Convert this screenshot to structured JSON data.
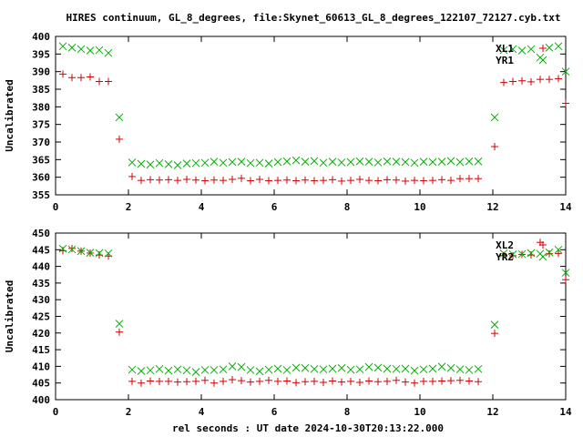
{
  "title": "HIRES continuum, GL_8_degrees, file:Skynet_60613_GL_8_degrees_122107_72127.cyb.txt",
  "xlabel": "rel seconds : UT date 2024-10-30T20:13:22.000",
  "colors": {
    "red": "#d40000",
    "green": "#00b000",
    "axis": "#000000"
  },
  "chart_data": [
    {
      "type": "scatter",
      "ylabel": "Uncalibrated",
      "xlim": [
        0,
        14
      ],
      "ylim": [
        355,
        400
      ],
      "xticks": [
        0,
        2,
        4,
        6,
        8,
        10,
        12,
        14
      ],
      "yticks": [
        355,
        360,
        365,
        370,
        375,
        380,
        385,
        390,
        395,
        400
      ],
      "legend_position": "top-right",
      "series": [
        {
          "name": "XL1",
          "marker": "plus",
          "color": "#d40000",
          "x": [
            0.2,
            0.45,
            0.7,
            0.95,
            1.2,
            1.45,
            1.75,
            2.1,
            2.35,
            2.6,
            2.85,
            3.1,
            3.35,
            3.6,
            3.85,
            4.1,
            4.35,
            4.6,
            4.85,
            5.1,
            5.35,
            5.6,
            5.85,
            6.1,
            6.35,
            6.6,
            6.85,
            7.1,
            7.35,
            7.6,
            7.85,
            8.1,
            8.35,
            8.6,
            8.85,
            9.1,
            9.35,
            9.6,
            9.85,
            10.1,
            10.35,
            10.6,
            10.85,
            11.1,
            11.35,
            11.6,
            12.05,
            12.3,
            12.55,
            12.8,
            13.05,
            13.3,
            13.55,
            13.8,
            14.0
          ],
          "y": [
            389.3,
            388.3,
            388.3,
            388.5,
            387.2,
            387.2,
            370.8,
            360.2,
            359.1,
            359.3,
            359.2,
            359.3,
            359.1,
            359.4,
            359.2,
            359.0,
            359.2,
            359.1,
            359.4,
            359.7,
            359.0,
            359.4,
            359.0,
            359.1,
            359.2,
            359.0,
            359.2,
            359.0,
            359.1,
            359.3,
            358.9,
            359.1,
            359.4,
            359.1,
            359.0,
            359.3,
            359.2,
            358.9,
            359.1,
            359.0,
            359.1,
            359.3,
            359.1,
            359.6,
            359.6,
            359.6,
            368.7,
            386.9,
            387.2,
            387.4,
            387.1,
            387.8,
            387.8,
            388.0,
            381.0
          ]
        },
        {
          "name": "YR1",
          "marker": "cross",
          "color": "#00b000",
          "x": [
            0.2,
            0.45,
            0.7,
            0.95,
            1.2,
            1.45,
            1.75,
            2.1,
            2.35,
            2.6,
            2.85,
            3.1,
            3.35,
            3.6,
            3.85,
            4.1,
            4.35,
            4.6,
            4.85,
            5.1,
            5.35,
            5.6,
            5.85,
            6.1,
            6.35,
            6.6,
            6.85,
            7.1,
            7.35,
            7.6,
            7.85,
            8.1,
            8.35,
            8.6,
            8.85,
            9.1,
            9.35,
            9.6,
            9.85,
            10.1,
            10.35,
            10.6,
            10.85,
            11.1,
            11.35,
            11.6,
            12.05,
            12.3,
            12.55,
            12.8,
            13.05,
            13.3,
            13.55,
            13.8,
            14.0
          ],
          "y": [
            397.2,
            396.8,
            396.4,
            396.0,
            396.1,
            395.3,
            377.0,
            364.2,
            363.8,
            363.6,
            364.0,
            363.7,
            363.4,
            363.9,
            364.0,
            364.1,
            364.4,
            364.1,
            364.3,
            364.4,
            364.0,
            364.1,
            363.9,
            364.3,
            364.5,
            364.8,
            364.4,
            364.6,
            364.1,
            364.4,
            364.2,
            364.3,
            364.5,
            364.4,
            364.2,
            364.5,
            364.4,
            364.3,
            364.1,
            364.4,
            364.3,
            364.4,
            364.6,
            364.3,
            364.5,
            364.5,
            377.0,
            396.1,
            396.4,
            396.0,
            396.4,
            394.0,
            396.8,
            397.2,
            390.0
          ]
        }
      ]
    },
    {
      "type": "scatter",
      "ylabel": "Uncalibrated",
      "xlim": [
        0,
        14
      ],
      "ylim": [
        400,
        450
      ],
      "xticks": [
        0,
        2,
        4,
        6,
        8,
        10,
        12,
        14
      ],
      "yticks": [
        400,
        405,
        410,
        415,
        420,
        425,
        430,
        435,
        440,
        445,
        450
      ],
      "legend_position": "top-right",
      "series": [
        {
          "name": "XL2",
          "marker": "plus",
          "color": "#d40000",
          "x": [
            0.2,
            0.45,
            0.7,
            0.95,
            1.2,
            1.45,
            1.75,
            2.1,
            2.35,
            2.6,
            2.85,
            3.1,
            3.35,
            3.6,
            3.85,
            4.1,
            4.35,
            4.6,
            4.85,
            5.1,
            5.35,
            5.6,
            5.85,
            6.1,
            6.35,
            6.6,
            6.85,
            7.1,
            7.35,
            7.6,
            7.85,
            8.1,
            8.35,
            8.6,
            8.85,
            9.1,
            9.35,
            9.6,
            9.85,
            10.1,
            10.35,
            10.6,
            10.85,
            11.1,
            11.35,
            11.6,
            12.05,
            12.3,
            12.55,
            12.8,
            13.05,
            13.3,
            13.55,
            13.8,
            14.0
          ],
          "y": [
            444.7,
            445.4,
            444.6,
            444.0,
            443.4,
            443.1,
            420.3,
            405.5,
            405.0,
            405.6,
            405.5,
            405.5,
            405.3,
            405.4,
            405.5,
            405.8,
            405.0,
            405.5,
            406.0,
            405.7,
            405.3,
            405.5,
            405.8,
            405.5,
            405.6,
            405.1,
            405.4,
            405.5,
            405.2,
            405.6,
            405.3,
            405.5,
            405.2,
            405.6,
            405.4,
            405.5,
            405.8,
            405.3,
            405.0,
            405.5,
            405.5,
            405.6,
            405.7,
            405.8,
            405.6,
            405.4,
            419.9,
            443.3,
            443.2,
            443.6,
            443.4,
            447.2,
            443.8,
            443.9,
            436.0
          ]
        },
        {
          "name": "YR2",
          "marker": "cross",
          "color": "#00b000",
          "x": [
            0.2,
            0.45,
            0.7,
            0.95,
            1.2,
            1.45,
            1.75,
            2.1,
            2.35,
            2.6,
            2.85,
            3.1,
            3.35,
            3.6,
            3.85,
            4.1,
            4.35,
            4.6,
            4.85,
            5.1,
            5.35,
            5.6,
            5.85,
            6.1,
            6.35,
            6.6,
            6.85,
            7.1,
            7.35,
            7.6,
            7.85,
            8.1,
            8.35,
            8.6,
            8.85,
            9.1,
            9.35,
            9.6,
            9.85,
            10.1,
            10.35,
            10.6,
            10.85,
            11.1,
            11.35,
            11.6,
            12.05,
            12.3,
            12.55,
            12.8,
            13.05,
            13.3,
            13.55,
            13.8,
            14.0
          ],
          "y": [
            445.3,
            445.1,
            444.6,
            444.1,
            444.0,
            443.9,
            422.8,
            409.0,
            408.6,
            408.8,
            409.2,
            408.7,
            409.1,
            408.8,
            408.3,
            408.9,
            408.9,
            409.1,
            410.0,
            409.8,
            408.9,
            408.5,
            409.0,
            409.3,
            408.9,
            409.6,
            409.5,
            409.2,
            409.1,
            409.3,
            409.5,
            409.0,
            409.1,
            409.8,
            409.6,
            409.3,
            409.2,
            409.3,
            408.7,
            409.1,
            409.3,
            409.9,
            409.5,
            409.1,
            408.9,
            409.2,
            422.5,
            443.9,
            443.6,
            443.7,
            444.0,
            443.8,
            444.2,
            445.0,
            438.1
          ]
        }
      ]
    }
  ]
}
